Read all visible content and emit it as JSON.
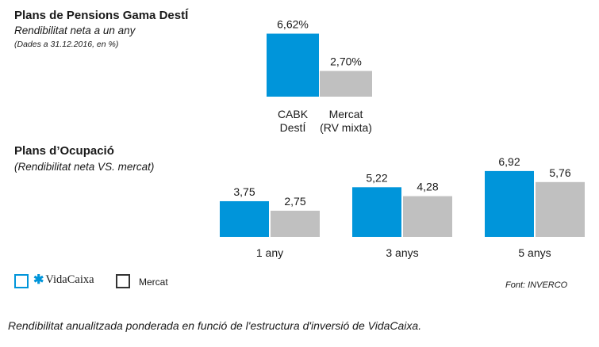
{
  "header": {
    "title": "Plans de Pensions Gama DestÍ",
    "subtitle": "Rendibilitat neta a un any",
    "date_note": "(Dades a 31.12.2016, en %)"
  },
  "section2": {
    "title": "Plans d’Ocupació",
    "subtitle": "(Rendibilitat neta VS. mercat)"
  },
  "legend": {
    "brand": "VidaCaixa",
    "market": "Mercat"
  },
  "source": "Font: INVERCO",
  "caption": "Rendibilitat anualitzada ponderada en funció de l'estructura d'inversió de VidaCaixa.",
  "colors": {
    "cabk": "#0095da",
    "market": "#c0c0c0"
  },
  "chart_data": [
    {
      "type": "bar",
      "title": "Plans de Pensions Gama DestÍ",
      "categories": [
        [
          "CABK",
          "DestÍ"
        ],
        [
          "Mercat",
          "(RV mixta)"
        ]
      ],
      "values": [
        6.62,
        2.7
      ],
      "value_labels": [
        "6,62%",
        "2,70%"
      ],
      "ylim": [
        0,
        7
      ]
    },
    {
      "type": "bar",
      "title": "Plans d’Ocupació",
      "categories": [
        "1 any",
        "3 anys",
        "5 anys"
      ],
      "series": [
        {
          "name": "VidaCaixa",
          "values": [
            3.75,
            5.22,
            6.92
          ],
          "labels": [
            "3,75",
            "5,22",
            "6,92"
          ]
        },
        {
          "name": "Mercat",
          "values": [
            2.75,
            4.28,
            5.76
          ],
          "labels": [
            "2,75",
            "4,28",
            "5,76"
          ]
        }
      ],
      "ylim": [
        0,
        7
      ]
    }
  ]
}
